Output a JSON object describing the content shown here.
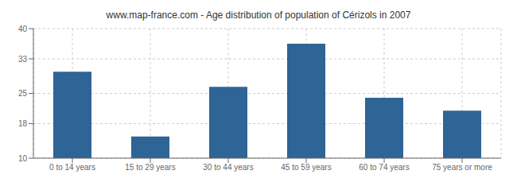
{
  "chart_data": {
    "type": "bar",
    "title": "www.map-france.com - Age distribution of population of Cérizols in 2007",
    "categories": [
      "0 to 14 years",
      "15 to 29 years",
      "30 to 44 years",
      "45 to 59 years",
      "60 to 74 years",
      "75 years or more"
    ],
    "values": [
      30.0,
      15.0,
      26.5,
      36.5,
      24.0,
      21.0
    ],
    "color": "#2e6496",
    "ylim": [
      10,
      40
    ],
    "yticks": [
      10,
      18,
      25,
      33,
      40
    ],
    "grid": true
  }
}
